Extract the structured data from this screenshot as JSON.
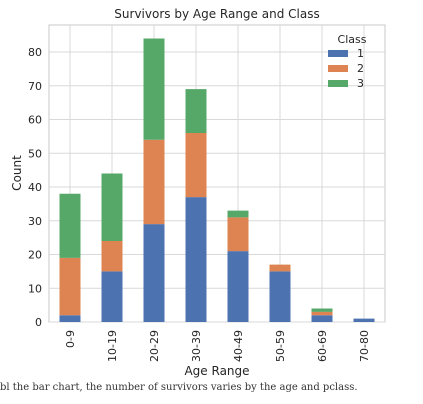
{
  "chart_data": {
    "type": "bar",
    "stacked": true,
    "title": "Survivors by Age Range and Class",
    "xlabel": "Age Range",
    "ylabel": "Count",
    "categories": [
      "0-9",
      "10-19",
      "20-29",
      "30-39",
      "40-49",
      "50-59",
      "60-69",
      "70-80"
    ],
    "ylim": [
      0,
      88
    ],
    "yticks": [
      0,
      10,
      20,
      30,
      40,
      50,
      60,
      70,
      80
    ],
    "grid": true,
    "legend": {
      "title": "Class",
      "placement": "top-right"
    },
    "series": [
      {
        "name": "1",
        "color": "#4c72b0",
        "values": [
          2,
          15,
          29,
          37,
          21,
          15,
          2,
          1
        ]
      },
      {
        "name": "2",
        "color": "#dd8452",
        "values": [
          17,
          9,
          25,
          19,
          10,
          2,
          1,
          0
        ]
      },
      {
        "name": "3",
        "color": "#55a868",
        "values": [
          19,
          20,
          30,
          13,
          2,
          0,
          1,
          0
        ]
      }
    ]
  },
  "caption_fragment": "bl the bar chart, the number of survivors varies by the age and pclass."
}
